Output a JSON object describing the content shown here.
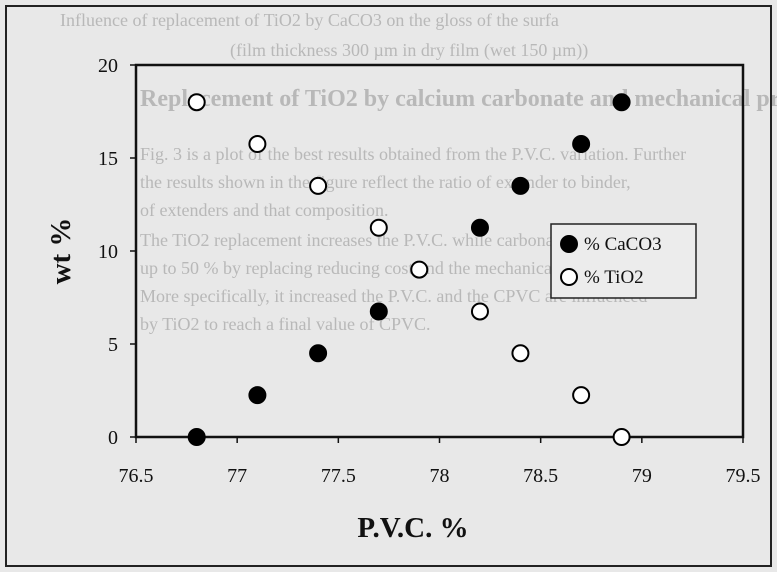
{
  "background_text": {
    "line1": "Influence of replacement of TiO2 by CaCO3 on the gloss of the surfa",
    "line2": "(film thickness 300 µm in dry film (wet 150 µm))",
    "line3": "Replacement of TiO2 by calcium carbonate and mechanical pro",
    "para": [
      "Fig. 3 is a plot of the best results obtained from the P.V.C. variation. Further",
      "the results shown in the figure reflect the ratio of extender to binder,",
      "of extenders and that composition.",
      "The TiO2 replacement increases the P.V.C. while carbonate replaced",
      "up to 50 % by replacing reducing cost and the mechanical properties",
      "More specifically, it increased the P.V.C. and the CPVC are influenced",
      "by TiO2 to reach a final value of CPVC."
    ]
  },
  "chart_data": {
    "type": "scatter",
    "title": "",
    "xlabel": "P.V.C. %",
    "ylabel": "wt %",
    "xlim": [
      76.5,
      79.5
    ],
    "ylim": [
      0,
      20
    ],
    "xticks": [
      "76.5",
      "77",
      "77.5",
      "78",
      "78.5",
      "79",
      "79.5"
    ],
    "yticks": [
      "0",
      "5",
      "10",
      "15",
      "20"
    ],
    "grid": false,
    "legend_position": "right",
    "series": [
      {
        "name": "% CaCO3",
        "marker": "filled-circle",
        "color": "#000000",
        "x": [
          76.8,
          77.1,
          77.4,
          77.7,
          78.2,
          78.4,
          78.7,
          78.9
        ],
        "y": [
          0,
          2.25,
          4.5,
          6.75,
          11.25,
          13.5,
          15.75,
          18.0
        ]
      },
      {
        "name": "% TiO2",
        "marker": "open-circle",
        "color": "#000000",
        "x": [
          76.8,
          77.1,
          77.4,
          77.7,
          77.9,
          78.2,
          78.4,
          78.7,
          78.9
        ],
        "y": [
          18.0,
          15.75,
          13.5,
          11.25,
          9.0,
          6.75,
          4.5,
          2.25,
          0
        ]
      }
    ]
  }
}
